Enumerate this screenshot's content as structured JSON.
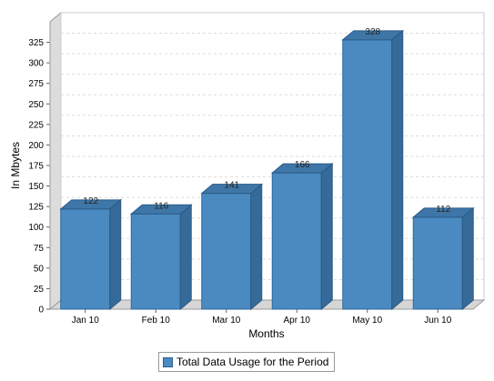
{
  "chart_data": {
    "type": "bar",
    "categories": [
      "Jan 10",
      "Feb 10",
      "Mar 10",
      "Apr 10",
      "May 10",
      "Jun 10"
    ],
    "series": [
      {
        "name": "Total Data Usage for the Period",
        "values": [
          122,
          116,
          141,
          166,
          328,
          112
        ],
        "color": "#4a8ac0"
      }
    ],
    "data_labels": [
      "122",
      "116",
      "141",
      "166",
      "328",
      "112"
    ],
    "xlabel": "Months",
    "ylabel": "In Mbytes",
    "ylim": [
      0,
      350
    ],
    "yticks": [
      0,
      25,
      50,
      75,
      100,
      125,
      150,
      175,
      200,
      225,
      250,
      275,
      300,
      325
    ],
    "grid": true,
    "three_d": true,
    "legend_position": "bottom"
  }
}
